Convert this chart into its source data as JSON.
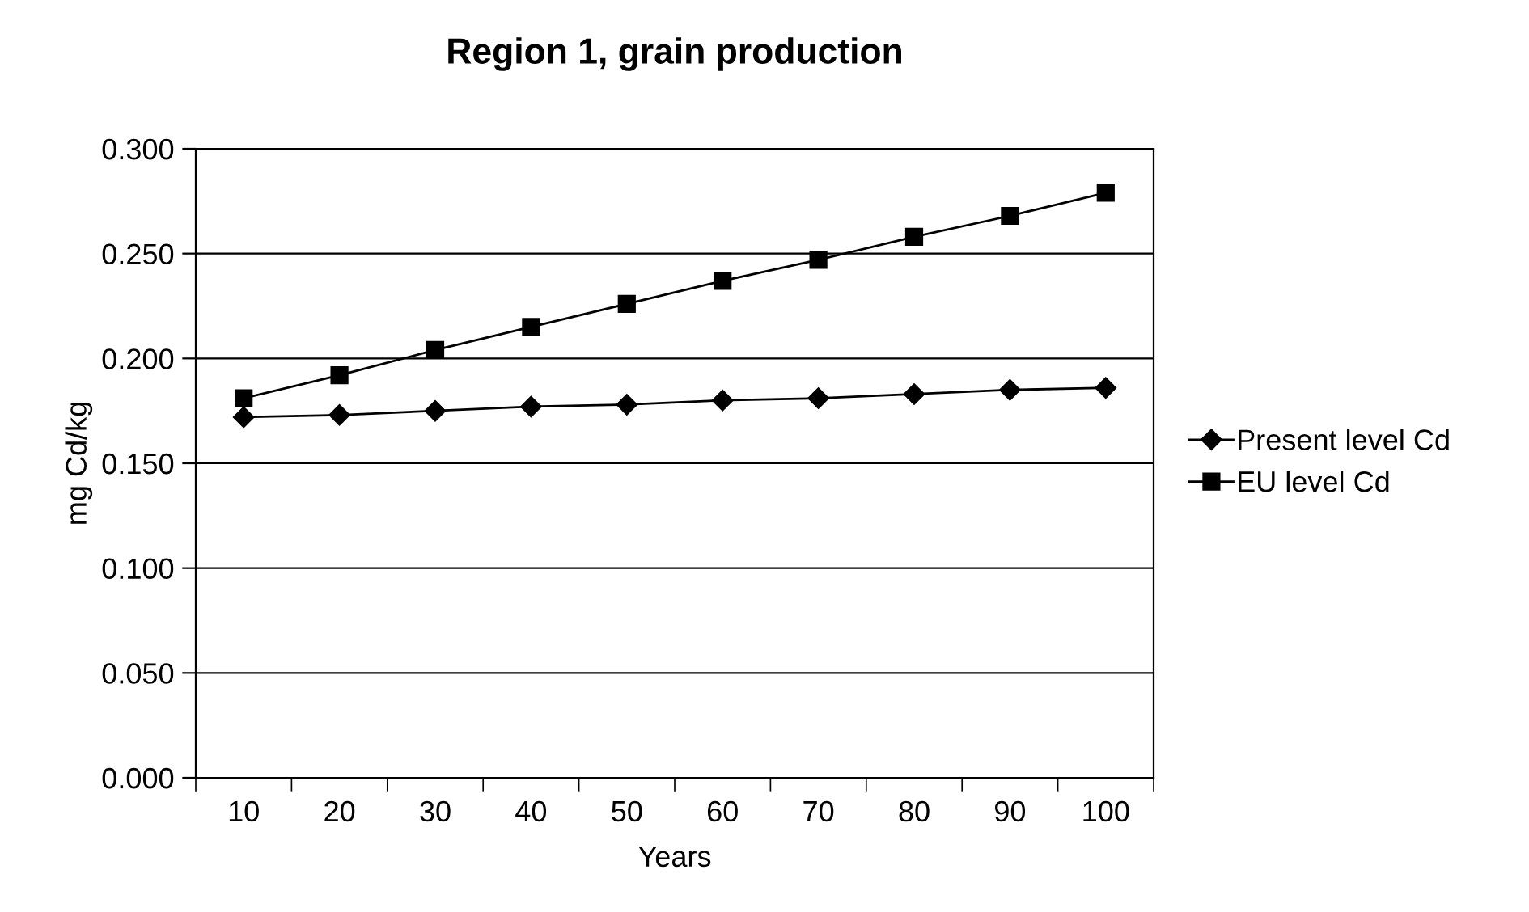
{
  "chart_data": {
    "type": "line",
    "title": "Region 1, grain production",
    "xlabel": "Years",
    "ylabel": "mg Cd/kg",
    "categories": [
      "10",
      "20",
      "30",
      "40",
      "50",
      "60",
      "70",
      "80",
      "90",
      "100"
    ],
    "series": [
      {
        "name": "Present level Cd",
        "color": "#000000",
        "marker": "diamond",
        "values": [
          0.172,
          0.173,
          0.175,
          0.177,
          0.178,
          0.18,
          0.181,
          0.183,
          0.185,
          0.186
        ]
      },
      {
        "name": "EU level Cd",
        "color": "#000000",
        "marker": "square",
        "values": [
          0.181,
          0.192,
          0.204,
          0.215,
          0.226,
          0.237,
          0.247,
          0.258,
          0.268,
          0.279
        ]
      }
    ],
    "ylim": [
      0,
      0.3
    ],
    "yticks": [
      {
        "value": 0,
        "label": "0.000"
      },
      {
        "value": 0.05,
        "label": "0.050"
      },
      {
        "value": 0.1,
        "label": "0.100"
      },
      {
        "value": 0.15,
        "label": "0.150"
      },
      {
        "value": 0.2,
        "label": "0.200"
      },
      {
        "value": 0.25,
        "label": "0.250"
      },
      {
        "value": 0.3,
        "label": "0.300"
      }
    ],
    "grid": "y",
    "legend": "right",
    "line_style": "solid"
  }
}
